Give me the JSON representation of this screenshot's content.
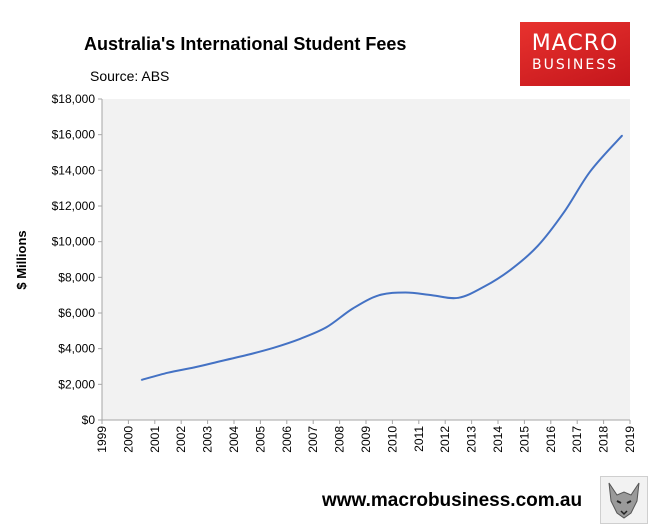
{
  "header": {
    "title": "Australia's International Student Fees",
    "source": "Source: ABS"
  },
  "logo": {
    "line1": "MACRO",
    "line2": "BUSINESS"
  },
  "footer": {
    "url": "www.macrobusiness.com.au"
  },
  "colors": {
    "line": "#4472c4",
    "plot_bg": "#f2f2f2",
    "logo": "#d42a25"
  },
  "chart_data": {
    "type": "line",
    "title": "Australia's International Student Fees",
    "subtitle": "Source: ABS",
    "xlabel": "",
    "ylabel": "$ Millions",
    "ylim": [
      0,
      18000
    ],
    "yticks": [
      0,
      2000,
      4000,
      6000,
      8000,
      10000,
      12000,
      14000,
      16000,
      18000
    ],
    "ytick_labels": [
      "$0",
      "$2,000",
      "$4,000",
      "$6,000",
      "$8,000",
      "$10,000",
      "$12,000",
      "$14,000",
      "$16,000",
      "$18,000"
    ],
    "xlim": [
      1999,
      2019
    ],
    "xtick_labels": [
      "1999",
      "2000",
      "2001",
      "2002",
      "2003",
      "2004",
      "2005",
      "2006",
      "2007",
      "2008",
      "2009",
      "2010",
      "2011",
      "2012",
      "2013",
      "2014",
      "2015",
      "2016",
      "2017",
      "2018",
      "2019"
    ],
    "grid": false,
    "legend": "none",
    "series": [
      {
        "x": [
          2000.5,
          2001.5,
          2002.5,
          2003.5,
          2004.5,
          2005.5,
          2006.5,
          2007.5,
          2008.5,
          2009.5,
          2010.5,
          2011.5,
          2012.5,
          2013.5,
          2014.5,
          2015.5,
          2016.5,
          2017.5,
          2018.7
        ],
        "values": [
          2250,
          2650,
          2950,
          3300,
          3650,
          4050,
          4550,
          5200,
          6250,
          7000,
          7150,
          7000,
          6850,
          7500,
          8450,
          9750,
          11650,
          13950,
          15950
        ]
      }
    ]
  }
}
